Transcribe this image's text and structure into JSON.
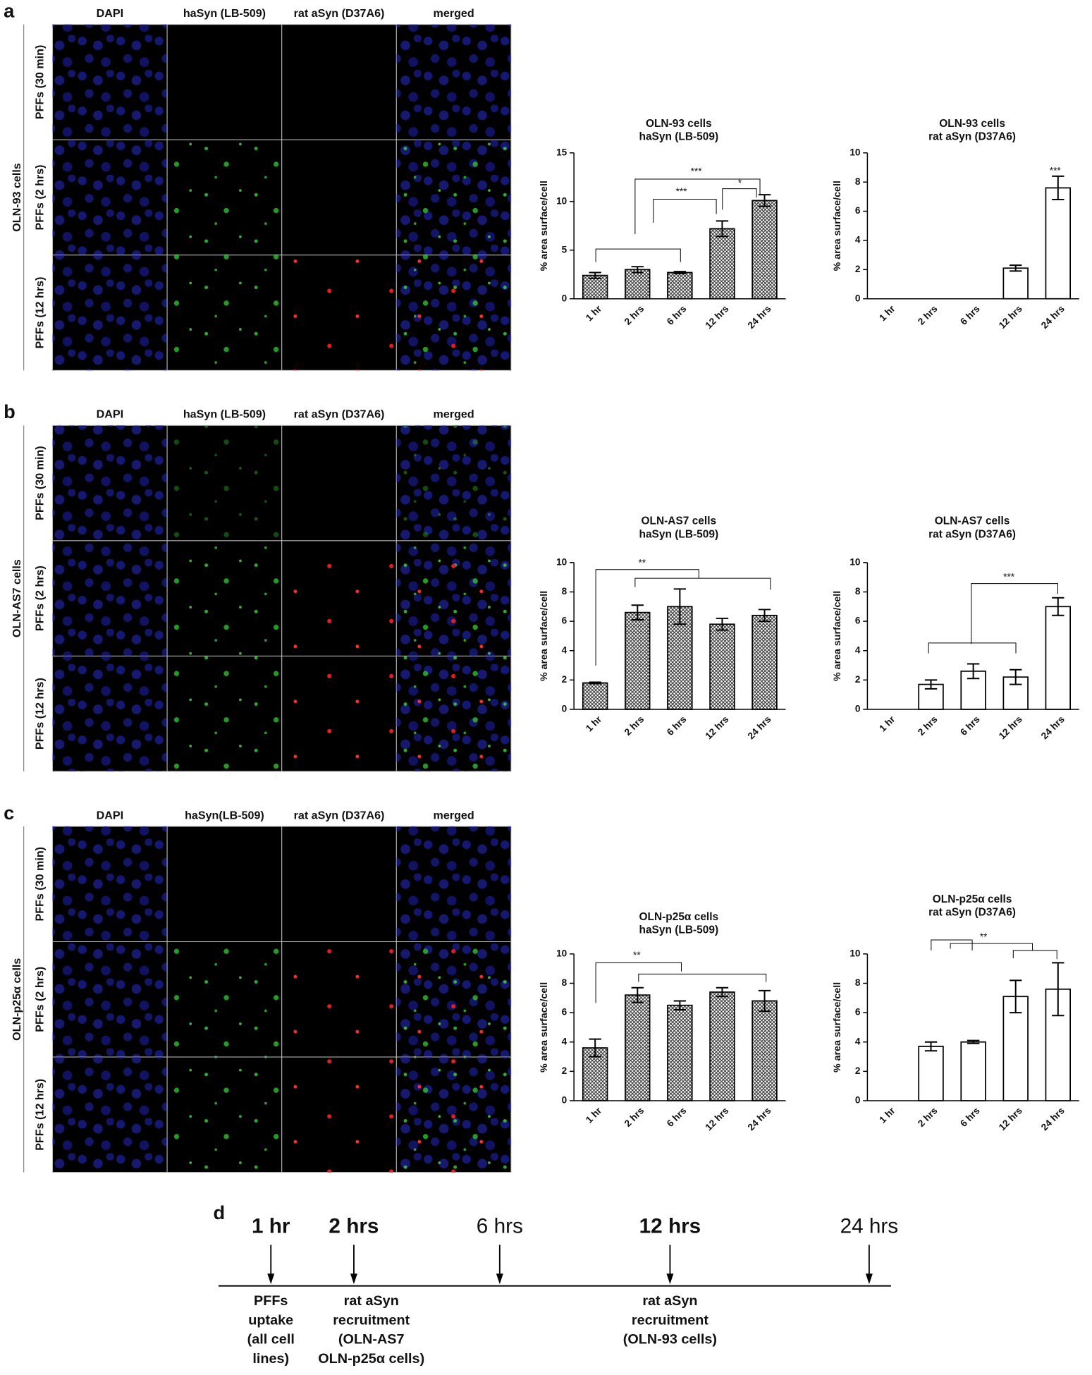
{
  "panels": [
    {
      "label": "a",
      "cell_line": "OLN-93 cells",
      "columns": [
        "DAPI",
        "haSyn (LB-509)",
        "rat aSyn (D37A6)",
        "merged"
      ],
      "rows": [
        "PFFs (30 min)",
        "PFFs (2 hrs)",
        "PFFs (12 hrs)"
      ]
    },
    {
      "label": "b",
      "cell_line": "OLN-AS7 cells",
      "columns": [
        "DAPI",
        "haSyn (LB-509)",
        "rat aSyn (D37A6)",
        "merged"
      ],
      "rows": [
        "PFFs (30 min)",
        "PFFs (2 hrs)",
        "PFFs (12 hrs)"
      ]
    },
    {
      "label": "c",
      "cell_line": "OLN-p25α cells",
      "columns": [
        "DAPI",
        "haSyn(LB-509)",
        "rat aSyn (D37A6)",
        "merged"
      ],
      "rows": [
        "PFFs (30 min)",
        "PFFs (2 hrs)",
        "PFFs (12 hrs)"
      ]
    }
  ],
  "chart_data": [
    {
      "type": "bar",
      "title": [
        "OLN-93 cells",
        "haSyn (LB-509)"
      ],
      "ylabel": "% area surface/cell",
      "categories": [
        "1 hr",
        "2 hrs",
        "6 hrs",
        "12 hrs",
        "24 hrs"
      ],
      "values": [
        2.4,
        3.0,
        2.7,
        7.2,
        10.1
      ],
      "errors": [
        0.3,
        0.3,
        0.1,
        0.8,
        0.6
      ],
      "fill": "hatched",
      "ylim": [
        0,
        15
      ],
      "yticks": [
        0,
        5,
        10,
        15
      ],
      "annotations": [
        "***",
        "***",
        "*"
      ]
    },
    {
      "type": "bar",
      "title": [
        "OLN-93 cells",
        "rat aSyn (D37A6)"
      ],
      "ylabel": "% area surface/cell",
      "categories": [
        "1 hr",
        "2 hrs",
        "6 hrs",
        "12 hrs",
        "24 hrs"
      ],
      "values": [
        0,
        0,
        0,
        2.1,
        7.6
      ],
      "errors": [
        0,
        0,
        0,
        0.2,
        0.8
      ],
      "fill": "white",
      "ylim": [
        0,
        10
      ],
      "yticks": [
        0,
        2,
        4,
        6,
        8,
        10
      ],
      "annotations": [
        "***"
      ]
    },
    {
      "type": "bar",
      "title": [
        "OLN-AS7 cells",
        "haSyn (LB-509)"
      ],
      "ylabel": "% area surface/cell",
      "categories": [
        "1 hr",
        "2 hrs",
        "6 hrs",
        "12 hrs",
        "24 hrs"
      ],
      "values": [
        1.8,
        6.6,
        7.0,
        5.8,
        6.4
      ],
      "errors": [
        0.05,
        0.5,
        1.2,
        0.4,
        0.4
      ],
      "fill": "hatched",
      "ylim": [
        0,
        10
      ],
      "yticks": [
        0,
        2,
        4,
        6,
        8,
        10
      ],
      "annotations": [
        "**"
      ]
    },
    {
      "type": "bar",
      "title": [
        "OLN-AS7 cells",
        "rat aSyn (D37A6)"
      ],
      "ylabel": "% area surface/cell",
      "categories": [
        "1 hr",
        "2 hrs",
        "6 hrs",
        "12 hrs",
        "24 hrs"
      ],
      "values": [
        0,
        1.7,
        2.6,
        2.2,
        7.0
      ],
      "errors": [
        0,
        0.3,
        0.5,
        0.5,
        0.6
      ],
      "fill": "white",
      "ylim": [
        0,
        10
      ],
      "yticks": [
        0,
        2,
        4,
        6,
        8,
        10
      ],
      "annotations": [
        "***"
      ]
    },
    {
      "type": "bar",
      "title": [
        "OLN-p25α cells",
        "haSyn (LB-509)"
      ],
      "ylabel": "% area surface/cell",
      "categories": [
        "1 hr",
        "2 hrs",
        "6 hrs",
        "12 hrs",
        "24 hrs"
      ],
      "values": [
        3.6,
        7.2,
        6.5,
        7.4,
        6.8
      ],
      "errors": [
        0.6,
        0.5,
        0.3,
        0.3,
        0.7
      ],
      "fill": "hatched",
      "ylim": [
        0,
        10
      ],
      "yticks": [
        0,
        2,
        4,
        6,
        8,
        10
      ],
      "annotations": [
        "**"
      ]
    },
    {
      "type": "bar",
      "title": [
        "OLN-p25α cells",
        "rat aSyn (D37A6)"
      ],
      "ylabel": "% area surface/cell",
      "categories": [
        "1 hr",
        "2 hrs",
        "6 hrs",
        "12 hrs",
        "24 hrs"
      ],
      "values": [
        0,
        3.7,
        4.0,
        7.1,
        7.6
      ],
      "errors": [
        0,
        0.3,
        0.1,
        1.1,
        1.8
      ],
      "fill": "white",
      "ylim": [
        0,
        10
      ],
      "yticks": [
        0,
        2,
        4,
        6,
        8,
        10
      ],
      "annotations": [
        "**"
      ]
    }
  ],
  "timeline": {
    "label": "d",
    "points": [
      {
        "time": "1 hr",
        "bold": true,
        "note": [
          "PFFs",
          "uptake",
          "(all cell",
          "lines)"
        ]
      },
      {
        "time": "2 hrs",
        "bold": true,
        "note": [
          "rat aSyn",
          "recruitment",
          "(OLN-AS7",
          "OLN-p25α cells)"
        ]
      },
      {
        "time": "6 hrs",
        "bold": false
      },
      {
        "time": "12 hrs",
        "bold": true,
        "note": [
          "rat aSyn",
          "recruitment",
          "(OLN-93 cells)"
        ]
      },
      {
        "time": "24 hrs",
        "bold": false
      }
    ]
  }
}
